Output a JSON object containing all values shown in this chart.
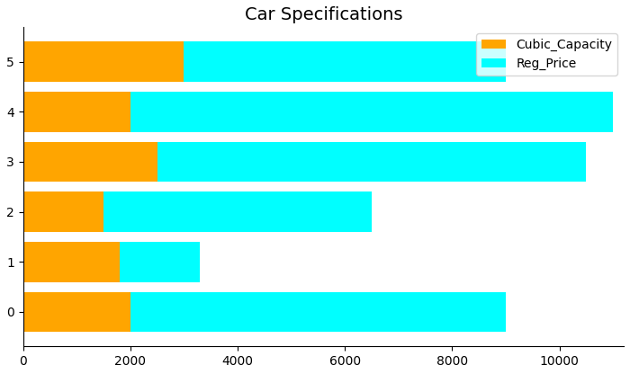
{
  "title": "Car Specifications",
  "categories": [
    0,
    1,
    2,
    3,
    4,
    5
  ],
  "cubic_capacity": [
    2000,
    1800,
    1500,
    2500,
    2000,
    3000
  ],
  "reg_price": [
    7000,
    1500,
    5000,
    8000,
    9000,
    6000
  ],
  "color_cubic": "#FFA500",
  "color_reg": "#00FFFF",
  "legend_labels": [
    "Cubic_Capacity",
    "Reg_Price"
  ],
  "xlim_max": 11200,
  "figsize": [
    7.0,
    4.16
  ],
  "dpi": 100,
  "bar_height": 0.8,
  "title_fontsize": 14,
  "tick_fontsize": 10
}
